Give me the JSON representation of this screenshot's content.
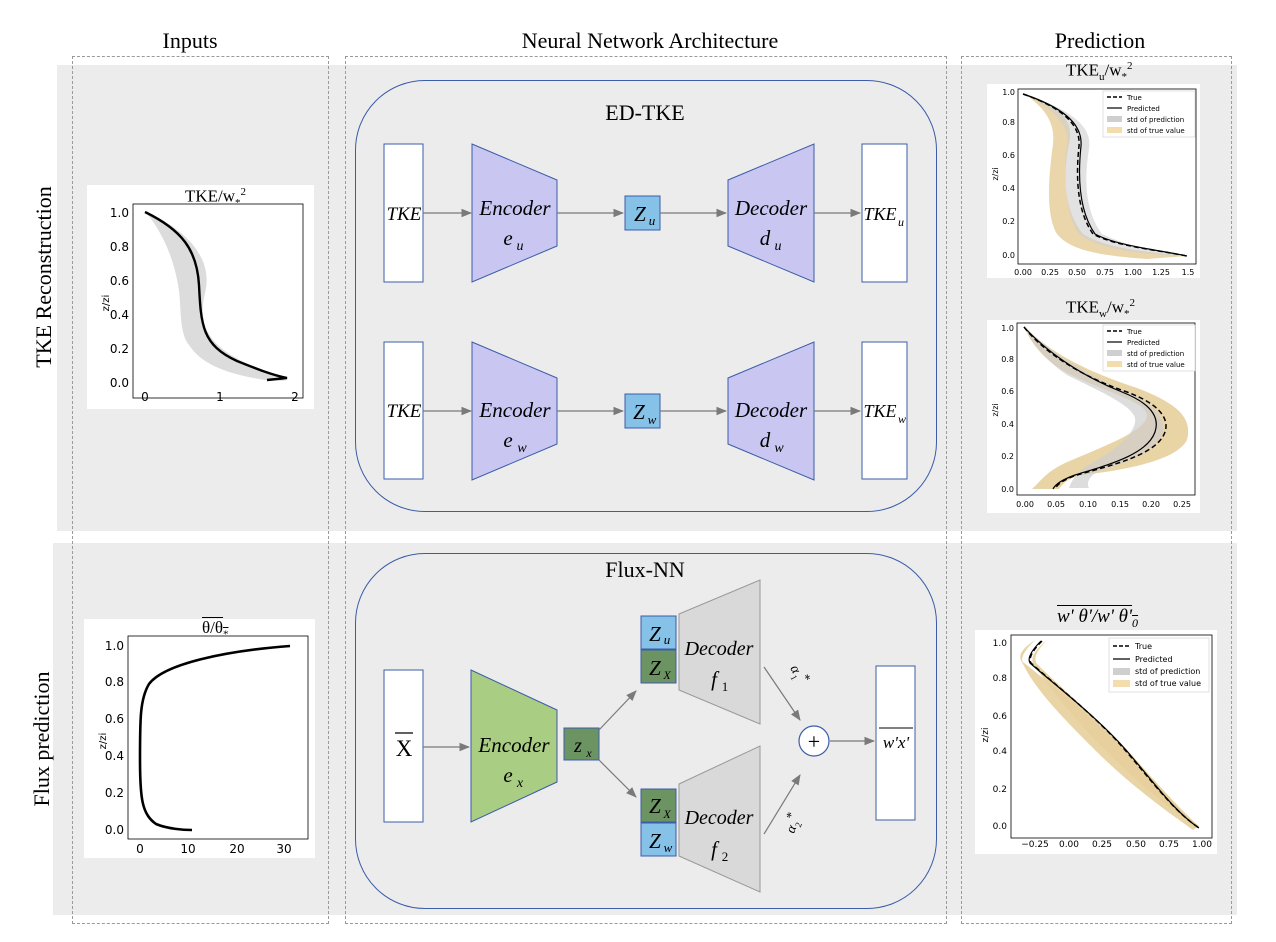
{
  "columns": {
    "inputs": "Inputs",
    "architecture": "Neural Network Architecture",
    "prediction": "Prediction"
  },
  "rows": {
    "tke": "TKE Reconstruction",
    "flux": "Flux prediction"
  },
  "groups": {
    "ed_tke": "ED-TKE",
    "flux_nn": "Flux-NN"
  },
  "tke_u_branch": {
    "input": "TKE",
    "encoder": "Encoder",
    "encoder_sym": "e",
    "encoder_sub": "u",
    "latent": "Z",
    "latent_sub": "u",
    "decoder": "Decoder",
    "decoder_sym": "d",
    "decoder_sub": "u",
    "output": "TKE",
    "output_sub": "u"
  },
  "tke_w_branch": {
    "input": "TKE",
    "encoder": "Encoder",
    "encoder_sym": "e",
    "encoder_sub": "w",
    "latent": "Z",
    "latent_sub": "w",
    "decoder": "Decoder",
    "decoder_sym": "d",
    "decoder_sub": "w",
    "output": "TKE",
    "output_sub": "w"
  },
  "flux_branch": {
    "input": "X",
    "encoder": "Encoder",
    "encoder_sym": "e",
    "encoder_sub": "x",
    "latent": "z",
    "latent_sub": "x",
    "top_latent_u": "Z",
    "top_latent_u_sub": "u",
    "top_latent_x": "Z",
    "top_latent_x_sub": "X",
    "bottom_latent_x": "Z",
    "bottom_latent_x_sub": "X",
    "bottom_latent_w": "Z",
    "bottom_latent_w_sub": "w",
    "decoder1": "Decoder",
    "decoder1_sym": "f",
    "decoder1_sub": "1",
    "decoder2": "Decoder",
    "decoder2_sym": "f",
    "decoder2_sub": "2",
    "alpha1": "α",
    "alpha1_sub": "1",
    "alpha1_sup": "*",
    "alpha2": "α",
    "alpha2_sub": "2",
    "alpha2_sup": "*",
    "plus": "+",
    "output": "w'x'"
  },
  "plots": {
    "input_tke": {
      "title": "TKE/w",
      "title_sub": "*",
      "title_sup": "2",
      "ylabel": "z/zi",
      "xticks": [
        "0",
        "1",
        "2"
      ],
      "yticks": [
        "0.0",
        "0.2",
        "0.4",
        "0.6",
        "0.8",
        "1.0"
      ]
    },
    "input_theta": {
      "title": "θ/θ",
      "title_sub": "*",
      "ylabel": "z/zi",
      "xticks": [
        "0",
        "10",
        "20",
        "30"
      ],
      "yticks": [
        "0.0",
        "0.2",
        "0.4",
        "0.6",
        "0.8",
        "1.0"
      ]
    },
    "pred_tke_u": {
      "title": "TKE",
      "title_sub": "u",
      "title_mid": "/w",
      "title_sub2": "*",
      "title_sup": "2",
      "ylabel": "z/zi",
      "xticks": [
        "0.00",
        "0.25",
        "0.50",
        "0.75",
        "1.00",
        "1.25",
        "1.5"
      ],
      "yticks": [
        "0.0",
        "0.2",
        "0.4",
        "0.6",
        "0.8",
        "1.0"
      ],
      "legend": [
        "True",
        "Predicted",
        "std of prediction",
        "std of true value"
      ]
    },
    "pred_tke_w": {
      "title": "TKE",
      "title_sub": "w",
      "title_mid": "/w",
      "title_sub2": "*",
      "title_sup": "2",
      "ylabel": "z/zi",
      "xticks": [
        "0.00",
        "0.05",
        "0.10",
        "0.15",
        "0.20",
        "0.25"
      ],
      "yticks": [
        "0.0",
        "0.2",
        "0.4",
        "0.6",
        "0.8",
        "1.0"
      ],
      "legend": [
        "True",
        "Predicted",
        "std of prediction",
        "std of true value"
      ]
    },
    "pred_flux": {
      "title": "w' θ'/w' θ'",
      "title_sub": "0",
      "ylabel": "z/zi",
      "xticks": [
        "−0.25",
        "0.00",
        "0.25",
        "0.50",
        "0.75",
        "1.00"
      ],
      "yticks": [
        "0.0",
        "0.2",
        "0.4",
        "0.6",
        "0.8",
        "1.0"
      ],
      "legend": [
        "True",
        "Predicted",
        "std of prediction",
        "std of true value"
      ]
    }
  },
  "colors": {
    "band": "#ececec",
    "frame": "#3b5ca8",
    "encoder_tke": "#c9c6f2",
    "encoder_flux": "#a8cd83",
    "latent_blue": "#86c1e8",
    "latent_green": "#6c9462",
    "decoder_gray": "#d9d9d9",
    "std_prediction": "#cfcfcf",
    "std_true": "#f3dcae"
  }
}
